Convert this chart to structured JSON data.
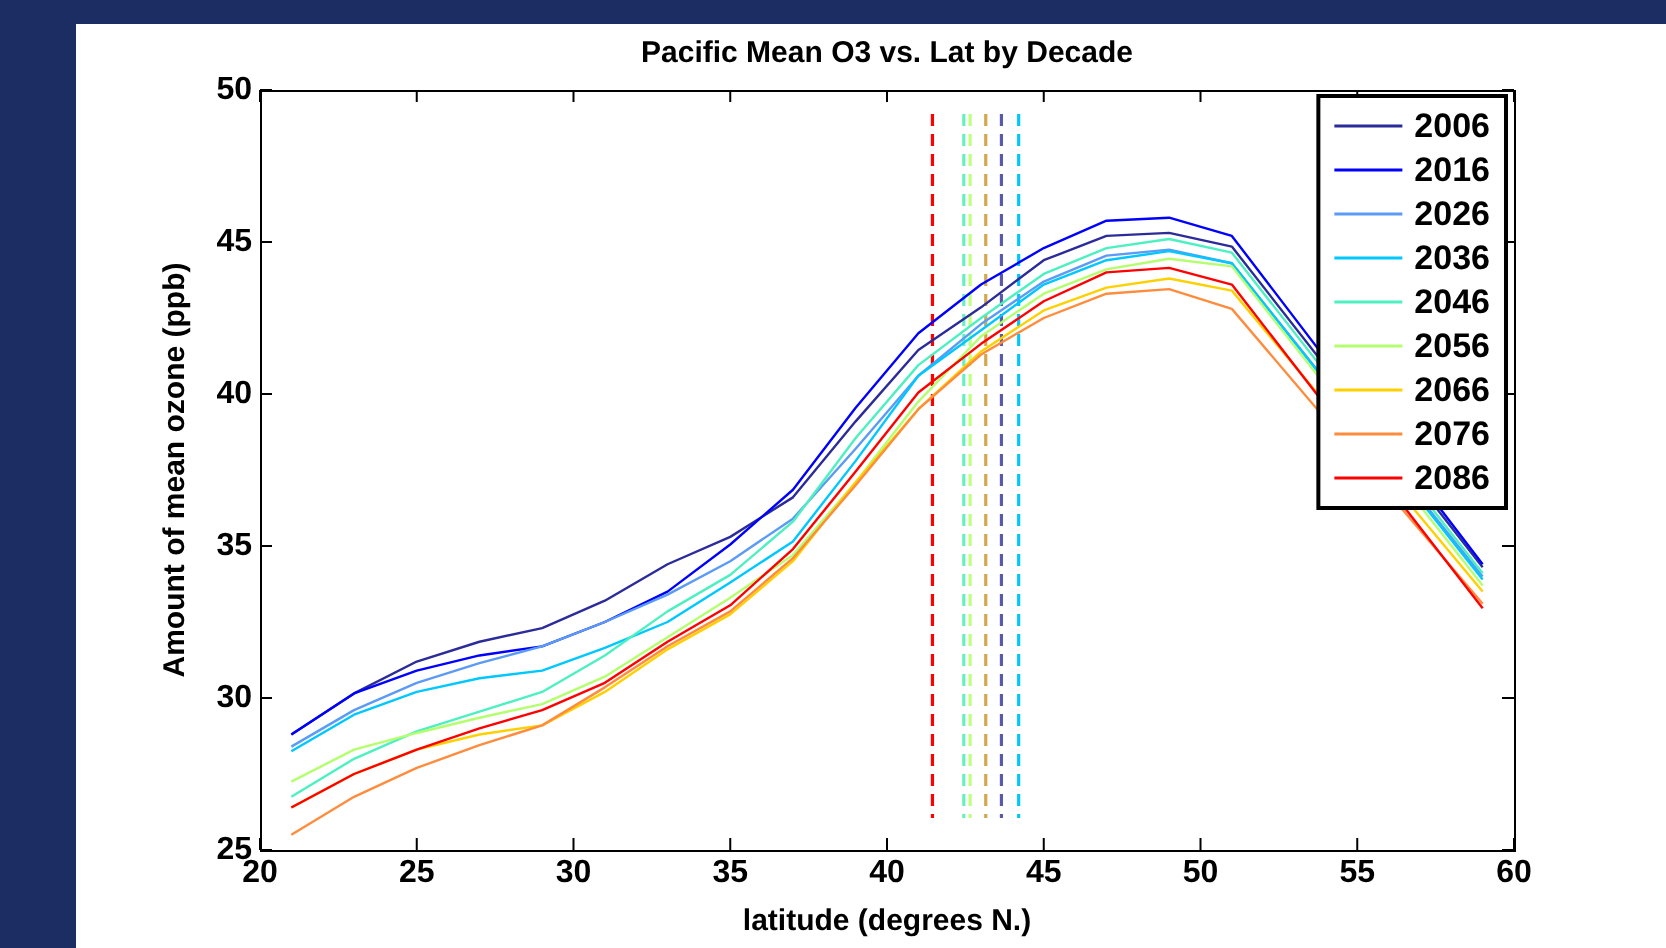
{
  "chart_data": {
    "type": "line",
    "title": "Pacific Mean O3 vs. Lat by Decade",
    "xlabel": "latitude (degrees N.)",
    "ylabel": "Amount of mean ozone (ppb)",
    "x": [
      21,
      23,
      25,
      27,
      29,
      31,
      33,
      35,
      37,
      39,
      41,
      43,
      45,
      47,
      49,
      51,
      53,
      55,
      57,
      59
    ],
    "xlim": [
      20,
      60
    ],
    "xticks": [
      20,
      25,
      30,
      35,
      40,
      45,
      50,
      55,
      60
    ],
    "ylim": [
      25,
      50
    ],
    "yticks": [
      25,
      30,
      35,
      40,
      45,
      50
    ],
    "grid": false,
    "legend": "top right",
    "marker": "none",
    "line_style": "solid",
    "series": [
      {
        "name": "2006",
        "color": "#2b2b9a",
        "values": [
          28.8,
          30.15,
          31.2,
          31.85,
          32.3,
          33.2,
          34.4,
          35.3,
          36.6,
          39.1,
          41.45,
          42.85,
          44.4,
          45.2,
          45.3,
          44.85,
          null,
          null,
          null,
          34.3
        ]
      },
      {
        "name": "2016",
        "color": "#0000ff",
        "values": [
          28.8,
          30.15,
          30.9,
          31.4,
          31.7,
          32.5,
          33.5,
          35.05,
          36.85,
          39.55,
          42.0,
          43.6,
          44.8,
          45.7,
          45.8,
          45.2,
          null,
          null,
          null,
          34.4
        ]
      },
      {
        "name": "2026",
        "color": "#5b9bf5",
        "values": [
          28.4,
          29.6,
          30.5,
          31.15,
          31.7,
          32.5,
          33.4,
          34.5,
          35.9,
          38.2,
          40.6,
          42.3,
          43.7,
          44.55,
          44.75,
          44.3,
          null,
          null,
          null,
          34.0
        ]
      },
      {
        "name": "2036",
        "color": "#00c8ff",
        "values": [
          28.25,
          29.45,
          30.2,
          30.65,
          30.9,
          31.65,
          32.5,
          33.8,
          35.15,
          37.8,
          40.6,
          42.1,
          43.6,
          44.4,
          44.7,
          44.3,
          null,
          null,
          null,
          33.9
        ]
      },
      {
        "name": "2046",
        "color": "#4df0c0",
        "values": [
          26.75,
          28.0,
          28.9,
          29.55,
          30.2,
          31.4,
          32.85,
          34.05,
          35.8,
          38.55,
          40.95,
          42.5,
          43.95,
          44.8,
          45.1,
          44.65,
          null,
          null,
          null,
          34.1
        ]
      },
      {
        "name": "2056",
        "color": "#b4ff6e",
        "values": [
          27.25,
          28.3,
          28.85,
          29.35,
          29.8,
          30.7,
          32.0,
          33.3,
          34.7,
          37.1,
          39.75,
          41.9,
          43.3,
          44.1,
          44.45,
          44.2,
          null,
          null,
          null,
          33.7
        ]
      },
      {
        "name": "2066",
        "color": "#ffd000",
        "values": [
          26.4,
          27.5,
          28.3,
          28.8,
          29.1,
          30.2,
          31.6,
          32.75,
          34.5,
          37.1,
          39.5,
          41.4,
          42.75,
          43.5,
          43.8,
          43.4,
          null,
          null,
          null,
          33.5
        ]
      },
      {
        "name": "2076",
        "color": "#ff8c3c",
        "values": [
          25.5,
          26.75,
          27.7,
          28.45,
          29.1,
          30.35,
          31.7,
          32.85,
          34.6,
          37.0,
          39.5,
          41.3,
          42.5,
          43.3,
          43.45,
          42.8,
          null,
          null,
          null,
          33.1
        ]
      },
      {
        "name": "2086",
        "color": "#ff0000",
        "values": [
          26.4,
          27.5,
          28.3,
          29.0,
          29.6,
          30.5,
          31.85,
          33.05,
          34.9,
          37.45,
          40.05,
          41.65,
          43.05,
          44.0,
          44.15,
          43.6,
          null,
          null,
          null,
          32.95
        ]
      }
    ],
    "ref_lines": [
      {
        "axis": "x",
        "value": 41.45,
        "color": "#ff0000",
        "line_style": "dashed"
      },
      {
        "axis": "x",
        "value": 42.45,
        "color": "#66f0c0",
        "line_style": "dashed"
      },
      {
        "axis": "x",
        "value": 42.65,
        "color": "#c0ff80",
        "line_style": "dashed"
      },
      {
        "axis": "x",
        "value": 43.15,
        "color": "#d4a84a",
        "line_style": "dashed"
      },
      {
        "axis": "x",
        "value": 43.65,
        "color": "#5a5aaa",
        "line_style": "dashed"
      },
      {
        "axis": "x",
        "value": 44.2,
        "color": "#00c8ff",
        "line_style": "dashed"
      }
    ]
  }
}
